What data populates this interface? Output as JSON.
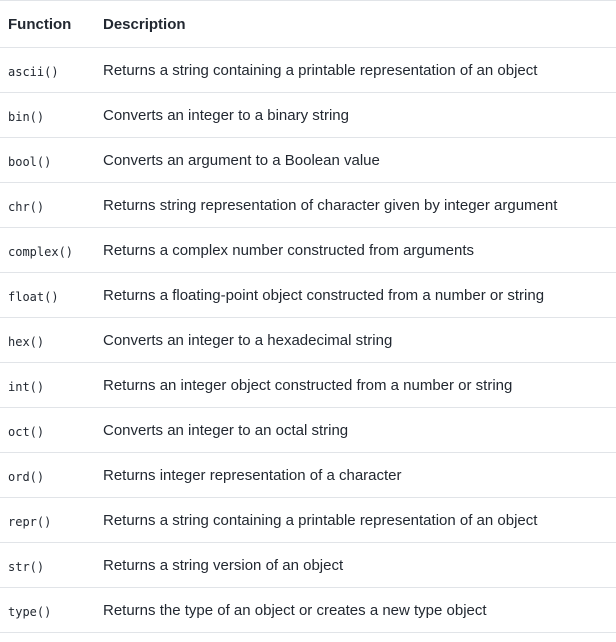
{
  "table": {
    "headers": {
      "function": "Function",
      "description": "Description"
    },
    "rows": [
      {
        "function": "ascii()",
        "description": "Returns a string containing a printable representation of an object"
      },
      {
        "function": "bin()",
        "description": "Converts an integer to a binary string"
      },
      {
        "function": "bool()",
        "description": "Converts an argument to a Boolean value"
      },
      {
        "function": "chr()",
        "description": "Returns string representation of character given by integer argument"
      },
      {
        "function": "complex()",
        "description": "Returns a complex number constructed from arguments"
      },
      {
        "function": "float()",
        "description": "Returns a floating-point object constructed from a number or string"
      },
      {
        "function": "hex()",
        "description": "Converts an integer to a hexadecimal string"
      },
      {
        "function": "int()",
        "description": "Returns an integer object constructed from a number or string"
      },
      {
        "function": "oct()",
        "description": "Converts an integer to an octal string"
      },
      {
        "function": "ord()",
        "description": "Returns integer representation of a character"
      },
      {
        "function": "repr()",
        "description": "Returns a string containing a printable representation of an object"
      },
      {
        "function": "str()",
        "description": "Returns a string version of an object"
      },
      {
        "function": "type()",
        "description": "Returns the type of an object or creates a new type object"
      }
    ]
  }
}
